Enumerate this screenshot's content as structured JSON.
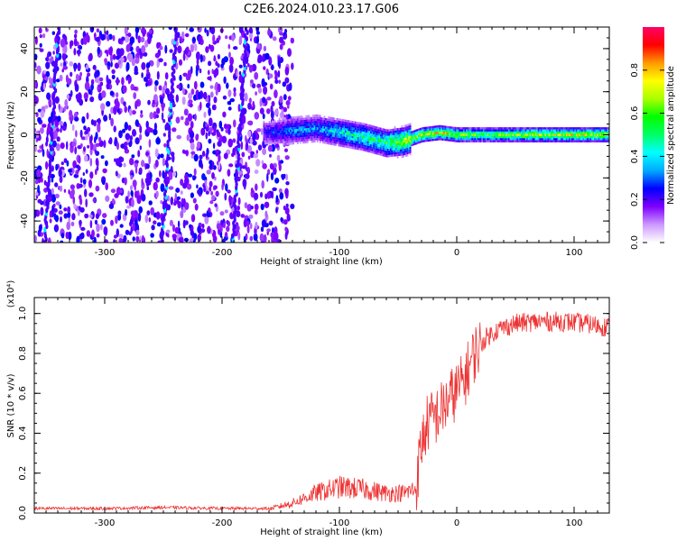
{
  "title": "C2E6.2024.010.23.17.G06",
  "chart_data": [
    {
      "type": "heatmap",
      "xlabel": "Height of straight line (km)",
      "ylabel": "Frequency (Hz)",
      "xlim": [
        -360,
        130
      ],
      "ylim": [
        -50,
        50
      ],
      "x_ticks": [
        -300,
        -200,
        -100,
        0,
        100
      ],
      "y_ticks": [
        -40,
        -20,
        0,
        20,
        40
      ],
      "colorbar": {
        "label": "Normalized spectral amplitude",
        "range": [
          0,
          1
        ],
        "ticks": [
          "0.0",
          "0.2",
          "0.4",
          "0.6",
          "0.8"
        ],
        "tick_values": [
          0,
          0.2,
          0.4,
          0.6,
          0.8
        ],
        "colors": [
          "#ffffff",
          "#cc99ff",
          "#7f00ff",
          "#0000ff",
          "#00aaff",
          "#00ffff",
          "#00ff66",
          "#00ff00",
          "#aaff00",
          "#ffff00",
          "#ff9900",
          "#ff0000",
          "#ff0066"
        ]
      },
      "features": {
        "noise_region_x": [
          -360,
          -155
        ],
        "signal_band": {
          "x": [
            -160,
            -140,
            -120,
            -100,
            -80,
            -60,
            -45,
            -30,
            -15,
            0,
            20,
            40,
            60,
            80,
            100,
            130
          ],
          "center_freq": [
            1,
            2,
            3,
            1,
            -1,
            -4,
            -3,
            0,
            1,
            0,
            0,
            0,
            0,
            0,
            0,
            0
          ],
          "amplitude": [
            0.25,
            0.35,
            0.35,
            0.45,
            0.5,
            0.55,
            0.7,
            0.75,
            0.75,
            0.7,
            0.6,
            0.65,
            0.7,
            0.72,
            0.72,
            0.75
          ]
        },
        "streaks_x_at_zero": [
          -345,
          -245,
          -185
        ]
      }
    },
    {
      "type": "line",
      "xlabel": "Height of straight line (km)",
      "ylabel": "SNR (10 * v/v)",
      "y_scale_label": "(x10⁴)",
      "xlim": [
        -360,
        130
      ],
      "ylim": [
        0,
        1.08
      ],
      "x_ticks": [
        -300,
        -200,
        -100,
        0,
        100
      ],
      "y_ticks": [
        0.0,
        0.2,
        0.4,
        0.6,
        0.8,
        1.0
      ],
      "color": "#ee3333",
      "series": [
        {
          "x": [
            -360,
            -300,
            -250,
            -200,
            -160,
            -140,
            -120,
            -100,
            -80,
            -60,
            -45,
            -35,
            -30,
            -25,
            -15,
            -5,
            5,
            15,
            25,
            35,
            50,
            70,
            90,
            110,
            130
          ],
          "values": [
            0.02,
            0.02,
            0.025,
            0.02,
            0.02,
            0.05,
            0.1,
            0.13,
            0.12,
            0.1,
            0.1,
            0.12,
            0.35,
            0.45,
            0.5,
            0.58,
            0.65,
            0.8,
            0.88,
            0.92,
            0.95,
            0.96,
            0.96,
            0.95,
            0.93
          ]
        }
      ]
    }
  ]
}
